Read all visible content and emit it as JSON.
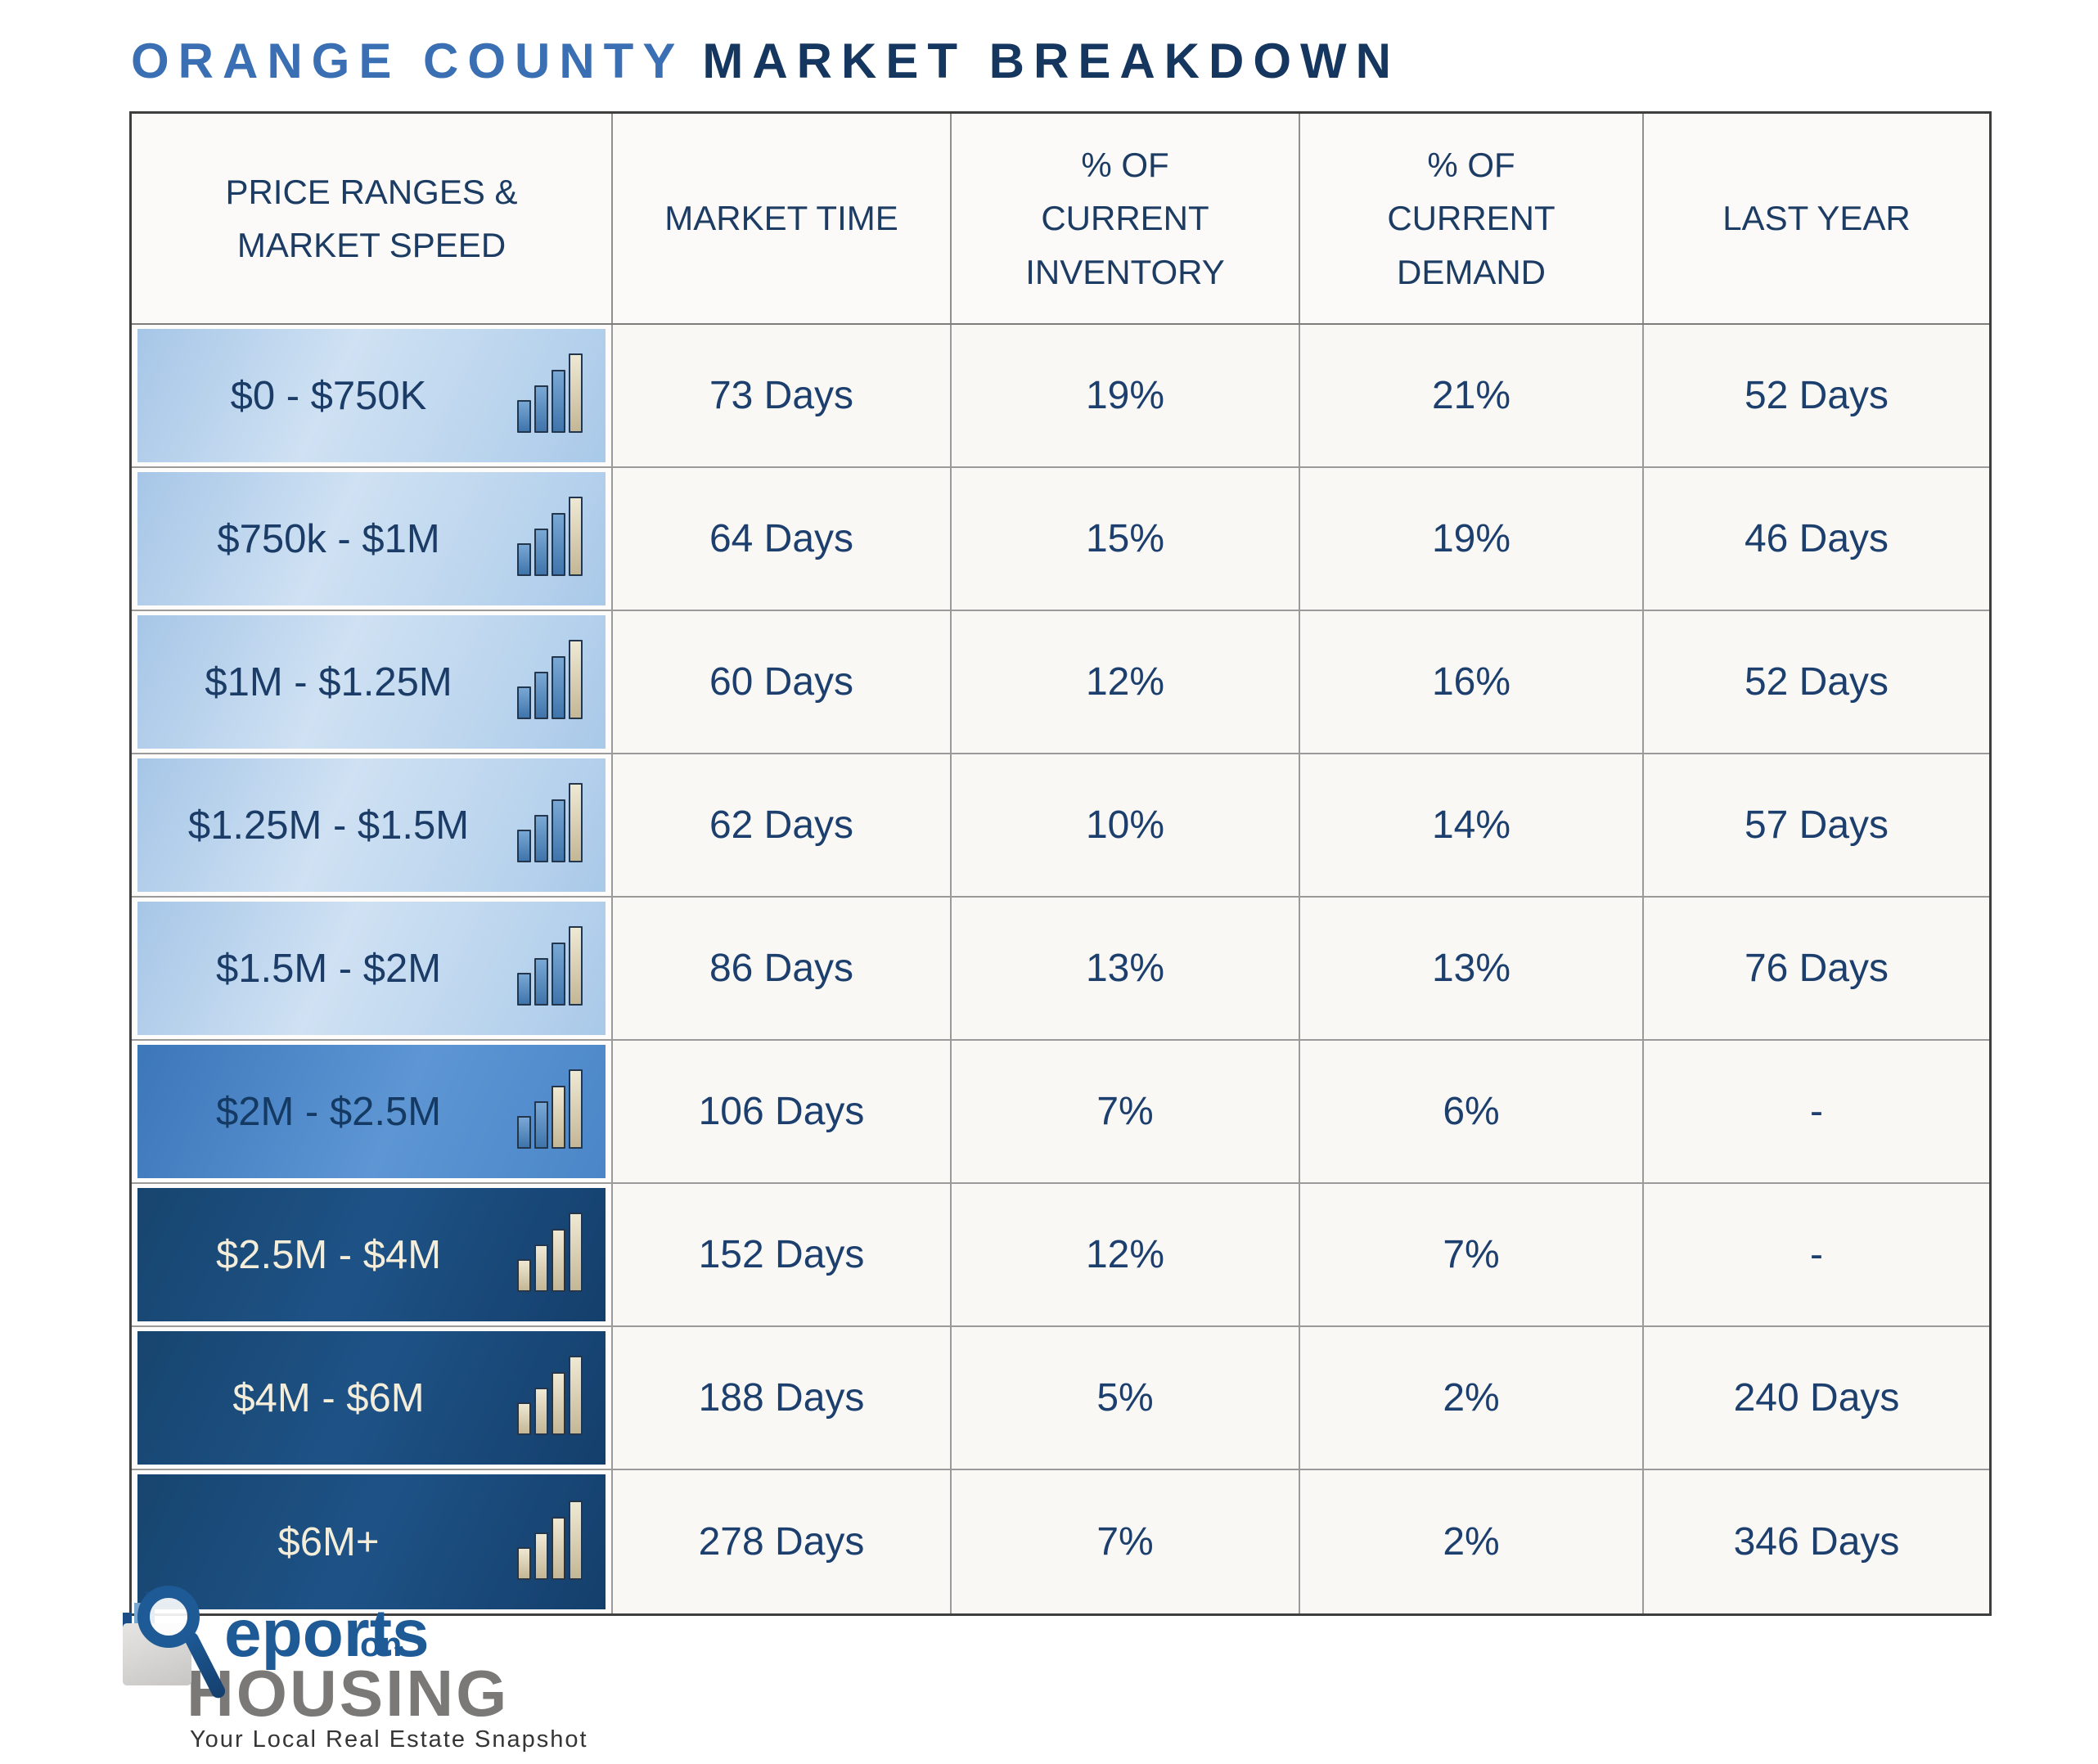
{
  "title": {
    "prefix": "ORANGE COUNTY",
    "suffix": "MARKET BREAKDOWN"
  },
  "table": {
    "columns": [
      "PRICE RANGES &\nMARKET SPEED",
      "MARKET TIME",
      "% OF\nCURRENT\nINVENTORY",
      "% OF\nCURRENT\nDEMAND",
      "LAST YEAR"
    ],
    "rows": [
      {
        "price_range": "$0 - $750K",
        "tier": "light",
        "icon_bars": [
          "blue",
          "blue",
          "blue",
          "tan"
        ],
        "market_time": "73 Days",
        "inventory": "19%",
        "demand": "21%",
        "last_year": "52 Days"
      },
      {
        "price_range": "$750k - $1M",
        "tier": "light",
        "icon_bars": [
          "blue",
          "blue",
          "blue",
          "tan"
        ],
        "market_time": "64 Days",
        "inventory": "15%",
        "demand": "19%",
        "last_year": "46 Days"
      },
      {
        "price_range": "$1M - $1.25M",
        "tier": "light",
        "icon_bars": [
          "blue",
          "blue",
          "blue",
          "tan"
        ],
        "market_time": "60 Days",
        "inventory": "12%",
        "demand": "16%",
        "last_year": "52 Days"
      },
      {
        "price_range": "$1.25M - $1.5M",
        "tier": "light",
        "icon_bars": [
          "blue",
          "blue",
          "blue",
          "tan"
        ],
        "market_time": "62 Days",
        "inventory": "10%",
        "demand": "14%",
        "last_year": "57 Days"
      },
      {
        "price_range": "$1.5M - $2M",
        "tier": "light",
        "icon_bars": [
          "blue",
          "blue",
          "blue",
          "tan"
        ],
        "market_time": "86 Days",
        "inventory": "13%",
        "demand": "13%",
        "last_year": "76 Days"
      },
      {
        "price_range": "$2M - $2.5M",
        "tier": "medium",
        "icon_bars": [
          "blue",
          "blue",
          "tan",
          "tan"
        ],
        "market_time": "106 Days",
        "inventory": "7%",
        "demand": "6%",
        "last_year": "-"
      },
      {
        "price_range": "$2.5M - $4M",
        "tier": "dark",
        "icon_bars": [
          "tan",
          "tan",
          "tan",
          "tan"
        ],
        "market_time": "152 Days",
        "inventory": "12%",
        "demand": "7%",
        "last_year": "-"
      },
      {
        "price_range": "$4M - $6M",
        "tier": "dark",
        "icon_bars": [
          "tan",
          "tan",
          "tan",
          "tan"
        ],
        "market_time": "188 Days",
        "inventory": "5%",
        "demand": "2%",
        "last_year": "240 Days"
      },
      {
        "price_range": "$6M+",
        "tier": "dark",
        "icon_bars": [
          "tan",
          "tan",
          "tan",
          "tan"
        ],
        "market_time": "278 Days",
        "inventory": "7%",
        "demand": "2%",
        "last_year": "346 Days"
      }
    ]
  },
  "logo": {
    "brand_r": "R",
    "brand_rest": "eports",
    "brand_on": "on",
    "brand_housing": "HOUSING",
    "tagline": "Your Local Real Estate Snapshot"
  },
  "colors": {
    "title_blue": "#3a6fb3",
    "title_navy": "#14365f",
    "header_text": "#1c3c63",
    "cell_text": "#1c3f6e",
    "light_row": "#b5d0ec",
    "medium_row": "#4a86c8",
    "dark_row": "#1a4876",
    "dark_row_text": "#f3edda",
    "bar_blue": "#4c80b5",
    "bar_tan": "#cfc2a3",
    "grid_line": "#9a9a9a",
    "logo_blue": "#1d5a96",
    "logo_gray": "#7a7977"
  },
  "chart_data": {
    "type": "table",
    "title": "ORANGE COUNTY MARKET BREAKDOWN",
    "columns": [
      "PRICE RANGES & MARKET SPEED",
      "MARKET TIME",
      "% OF CURRENT INVENTORY",
      "% OF CURRENT DEMAND",
      "LAST YEAR"
    ],
    "rows": [
      [
        "$0 - $750K",
        "73 Days",
        "19%",
        "21%",
        "52 Days"
      ],
      [
        "$750k - $1M",
        "64 Days",
        "15%",
        "19%",
        "46 Days"
      ],
      [
        "$1M - $1.25M",
        "60 Days",
        "12%",
        "16%",
        "52 Days"
      ],
      [
        "$1.25M - $1.5M",
        "62 Days",
        "10%",
        "14%",
        "57 Days"
      ],
      [
        "$1.5M - $2M",
        "86 Days",
        "13%",
        "13%",
        "76 Days"
      ],
      [
        "$2M - $2.5M",
        "106 Days",
        "7%",
        "6%",
        "-"
      ],
      [
        "$2.5M - $4M",
        "152 Days",
        "12%",
        "7%",
        "-"
      ],
      [
        "$4M - $6M",
        "188 Days",
        "5%",
        "2%",
        "240 Days"
      ],
      [
        "$6M+",
        "278 Days",
        "7%",
        "2%",
        "346 Days"
      ]
    ]
  }
}
